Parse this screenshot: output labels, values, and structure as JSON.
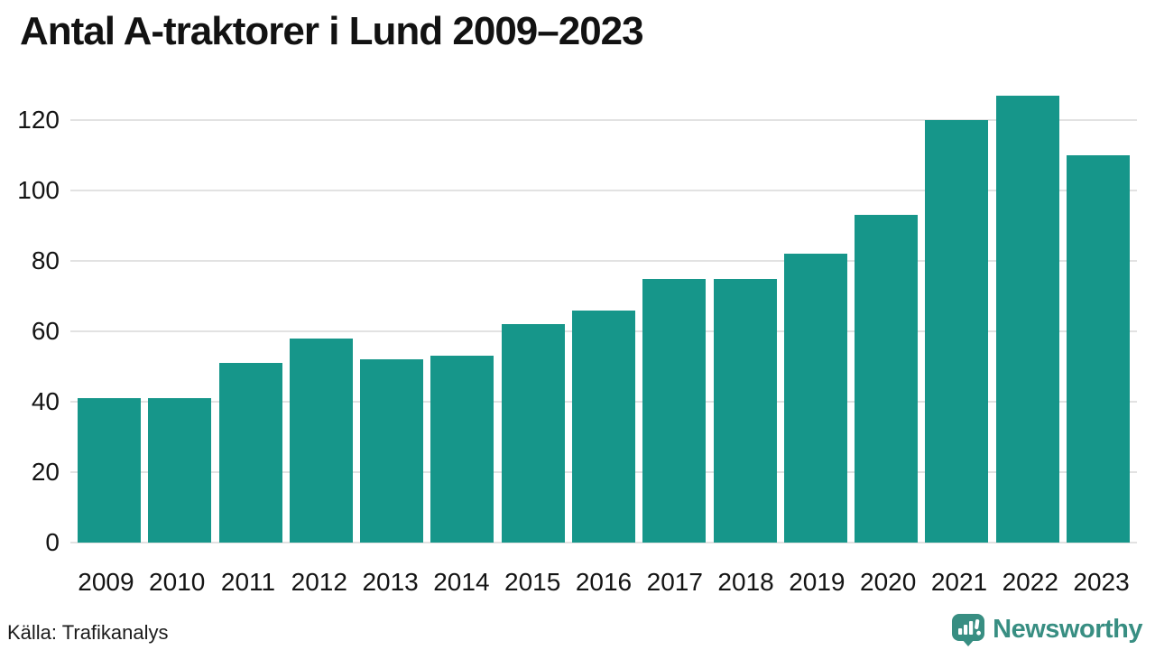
{
  "title": "Antal A-traktorer i Lund 2009–2023",
  "chart_data": {
    "type": "bar",
    "title": "Antal A-traktorer i Lund 2009–2023",
    "categories": [
      "2009",
      "2010",
      "2011",
      "2012",
      "2013",
      "2014",
      "2015",
      "2016",
      "2017",
      "2018",
      "2019",
      "2020",
      "2021",
      "2022",
      "2023"
    ],
    "values": [
      41,
      41,
      51,
      58,
      52,
      53,
      62,
      66,
      75,
      75,
      82,
      93,
      120,
      127,
      110
    ],
    "xlabel": "",
    "ylabel": "",
    "ylim": [
      0,
      130
    ],
    "yticks": [
      0,
      20,
      40,
      60,
      80,
      100,
      120
    ],
    "grid": true,
    "legend": false,
    "bar_color": "#16968A",
    "gridline_color": "#e2e2e2"
  },
  "footer": {
    "source": "Källa: Trafikanalys",
    "brand": "Newsworthy",
    "brand_color": "#388E82"
  }
}
